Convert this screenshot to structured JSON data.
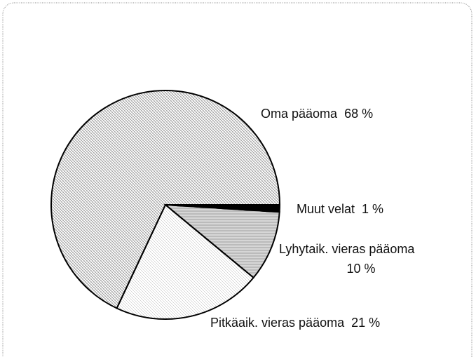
{
  "chart_data": {
    "type": "pie",
    "categories": [
      "Muut velat",
      "Lyhytaik. vieras pääoma",
      "Pitkäaik. vieras pääoma",
      "Oma pääoma"
    ],
    "values": [
      1,
      10,
      21,
      68
    ],
    "value_labels": [
      "1 %",
      "10 %",
      "21 %",
      "68 %"
    ],
    "colors": [
      "#000000",
      "#777777",
      "#aaaaaa",
      "#999999"
    ]
  }
}
